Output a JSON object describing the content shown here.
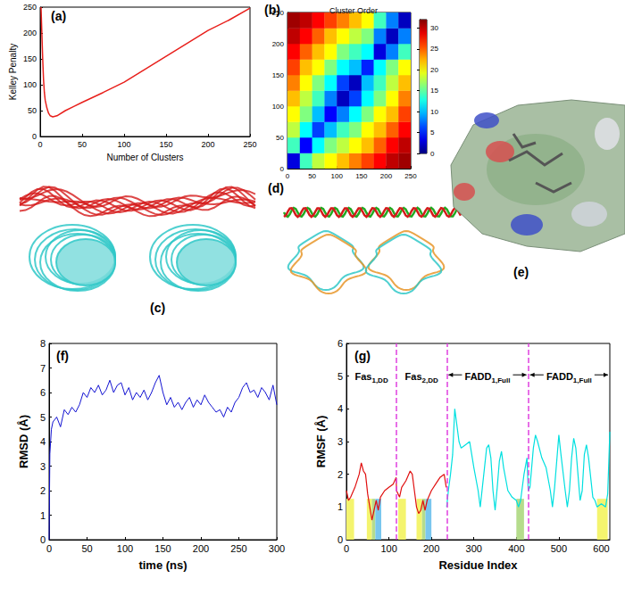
{
  "chart_data": [
    {
      "label": "(a)",
      "type": "line",
      "x_label": "Number of Clusters",
      "y_label": "Kelley Penalty",
      "x": [
        1,
        2,
        3,
        4,
        5,
        6,
        8,
        10,
        12,
        15,
        20,
        30,
        40,
        50,
        75,
        100,
        125,
        150,
        175,
        200,
        225,
        250
      ],
      "values": [
        250,
        200,
        150,
        110,
        85,
        70,
        55,
        45,
        40,
        38,
        40,
        50,
        58,
        66,
        85,
        105,
        130,
        155,
        180,
        205,
        225,
        248
      ],
      "color": "#e8201c",
      "xlim": [
        0,
        250
      ],
      "xticks": [
        0,
        50,
        100,
        150,
        200,
        250
      ],
      "ylim": [
        0,
        250
      ],
      "yticks": [
        0,
        50,
        100,
        150,
        200,
        250
      ]
    },
    {
      "label": "(b)",
      "type": "heatmap",
      "title": "Cluster Order",
      "x_bins": [
        0,
        25,
        50,
        75,
        100,
        125,
        150,
        175,
        200,
        225,
        250
      ],
      "y_bins": [
        0,
        25,
        50,
        75,
        100,
        125,
        150,
        175,
        200,
        225,
        250
      ],
      "cells": [
        [
          3,
          14,
          18,
          20,
          22,
          24,
          26,
          28,
          30,
          31
        ],
        [
          14,
          4,
          12,
          16,
          18,
          20,
          22,
          25,
          28,
          30
        ],
        [
          18,
          12,
          6,
          10,
          14,
          16,
          20,
          22,
          25,
          28
        ],
        [
          20,
          16,
          10,
          4,
          8,
          12,
          16,
          20,
          22,
          26
        ],
        [
          22,
          18,
          14,
          8,
          2,
          6,
          12,
          16,
          20,
          24
        ],
        [
          24,
          20,
          16,
          12,
          6,
          2,
          10,
          14,
          18,
          22
        ],
        [
          26,
          22,
          20,
          16,
          12,
          10,
          5,
          12,
          16,
          20
        ],
        [
          28,
          25,
          22,
          20,
          16,
          14,
          12,
          3,
          8,
          14
        ],
        [
          30,
          28,
          25,
          22,
          20,
          18,
          16,
          8,
          2,
          8
        ],
        [
          31,
          30,
          28,
          26,
          24,
          22,
          20,
          14,
          8,
          2
        ]
      ],
      "xlim": [
        0,
        250
      ],
      "xticks": [
        0,
        50,
        100,
        150,
        200,
        250
      ],
      "ylim": [
        0,
        250
      ],
      "yticks": [
        0,
        50,
        100,
        150,
        200,
        250
      ],
      "colorbar": {
        "range": [
          0,
          32
        ],
        "ticks": [
          0,
          5,
          10,
          15,
          20,
          25,
          30
        ]
      }
    },
    {
      "label": "(f)",
      "type": "line",
      "x_label": "time (ns)",
      "y_label": "RMSD (Å)",
      "x": [
        0,
        1,
        3,
        5,
        10,
        15,
        20,
        25,
        30,
        35,
        40,
        45,
        50,
        55,
        60,
        65,
        70,
        75,
        80,
        85,
        90,
        95,
        100,
        105,
        110,
        115,
        120,
        125,
        130,
        135,
        140,
        145,
        150,
        155,
        160,
        165,
        170,
        175,
        180,
        185,
        190,
        195,
        200,
        205,
        210,
        215,
        220,
        225,
        230,
        235,
        240,
        245,
        250,
        255,
        260,
        265,
        270,
        275,
        280,
        285,
        290,
        295,
        300
      ],
      "values": [
        0,
        3.5,
        4.5,
        4.8,
        5.0,
        4.6,
        5.3,
        5.1,
        5.4,
        5.2,
        5.5,
        6.0,
        5.8,
        6.2,
        6.0,
        6.3,
        5.9,
        6.1,
        6.5,
        6.0,
        6.3,
        6.4,
        5.9,
        6.2,
        5.7,
        6.0,
        5.8,
        6.1,
        5.7,
        6.0,
        6.4,
        6.7,
        6.0,
        5.5,
        5.8,
        5.4,
        5.6,
        5.3,
        5.6,
        5.8,
        5.4,
        5.7,
        5.5,
        5.9,
        5.6,
        5.4,
        5.2,
        5.3,
        5.0,
        5.4,
        5.2,
        5.6,
        5.8,
        6.2,
        6.4,
        6.0,
        6.1,
        5.8,
        6.2,
        6.0,
        5.7,
        6.3,
        5.5
      ],
      "color": "#1414d2",
      "xlim": [
        0,
        300
      ],
      "xticks": [
        0,
        50,
        100,
        150,
        200,
        250,
        300
      ],
      "ylim": [
        0,
        8
      ],
      "yticks": [
        0,
        1,
        2,
        3,
        4,
        5,
        6,
        7,
        8
      ]
    },
    {
      "label": "(g)",
      "type": "line",
      "x_label": "Residue Index",
      "y_label": "RMSF (Å)",
      "series": [
        {
          "color": "#e01010",
          "x": [
            0,
            5,
            10,
            20,
            30,
            35,
            40,
            45,
            50,
            55,
            60,
            65,
            70,
            75,
            80,
            90,
            100,
            110,
            117,
            118,
            125,
            130,
            140,
            150,
            155,
            160,
            165,
            170,
            175,
            180,
            185,
            190,
            200,
            210,
            220,
            230,
            235
          ],
          "values": [
            1.5,
            1.2,
            1.3,
            1.6,
            2.0,
            2.35,
            2.1,
            2.0,
            1.4,
            1.0,
            0.6,
            0.9,
            1.2,
            0.9,
            1.3,
            1.5,
            1.6,
            1.7,
            1.9,
            1.5,
            1.3,
            1.6,
            1.8,
            2.1,
            2.0,
            1.5,
            1.0,
            0.8,
            0.9,
            1.2,
            0.9,
            1.2,
            1.5,
            1.7,
            1.9,
            2.0,
            1.6
          ]
        },
        {
          "color": "#00e0e0",
          "x": [
            236,
            240,
            245,
            250,
            255,
            260,
            265,
            270,
            280,
            290,
            295,
            300,
            310,
            315,
            320,
            325,
            330,
            335,
            340,
            345,
            350,
            355,
            360,
            365,
            370,
            380,
            390,
            400,
            405,
            410,
            418,
            425,
            428,
            432,
            440,
            445,
            450,
            460,
            470,
            480,
            485,
            490,
            500,
            505,
            515,
            520,
            525,
            530,
            535,
            540,
            545,
            550,
            555,
            560,
            565,
            570,
            580,
            585,
            590,
            600,
            610,
            615,
            620
          ],
          "values": [
            1.0,
            1.5,
            2.0,
            2.6,
            4.0,
            3.5,
            3.0,
            2.8,
            2.9,
            3.0,
            2.6,
            2.2,
            1.5,
            1.0,
            1.6,
            2.2,
            2.8,
            2.9,
            2.5,
            1.5,
            0.9,
            1.6,
            2.4,
            2.7,
            2.2,
            1.5,
            1.3,
            1.2,
            1.0,
            1.2,
            2.0,
            2.5,
            1.5,
            1.6,
            2.8,
            3.2,
            3.0,
            2.5,
            2.2,
            1.5,
            1.0,
            1.6,
            3.2,
            2.6,
            1.5,
            1.0,
            1.5,
            2.5,
            3.1,
            2.8,
            2.0,
            1.2,
            1.5,
            2.6,
            2.9,
            2.5,
            1.3,
            1.2,
            1.0,
            1.1,
            1.0,
            1.4,
            3.3
          ]
        }
      ],
      "xlim": [
        0,
        620
      ],
      "xticks": [
        0,
        100,
        200,
        300,
        400,
        500,
        600
      ],
      "ylim": [
        0,
        6
      ],
      "yticks": [
        0,
        1,
        2,
        3,
        4,
        5,
        6
      ],
      "boundaries": [
        118,
        236,
        428
      ],
      "segments": [
        {
          "text": "Fas",
          "sub": "1,DD"
        },
        {
          "text": "Fas",
          "sub": "2,DD"
        },
        {
          "text": "FADD",
          "sub": "1,Full"
        },
        {
          "text": "FADD",
          "sub": "1,Full"
        }
      ],
      "regions": [
        {
          "x": [
            0,
            18
          ],
          "top": 1.25,
          "color": "#f4f46e"
        },
        {
          "x": [
            48,
            60
          ],
          "top": 1.25,
          "color": "#f4f46e"
        },
        {
          "x": [
            60,
            68
          ],
          "top": 1.25,
          "color": "#b5dc8c"
        },
        {
          "x": [
            68,
            82
          ],
          "top": 1.25,
          "color": "#79c6ee"
        },
        {
          "x": [
            122,
            140
          ],
          "top": 1.25,
          "color": "#f4f46e"
        },
        {
          "x": [
            165,
            178
          ],
          "top": 1.25,
          "color": "#f4f46e"
        },
        {
          "x": [
            178,
            186
          ],
          "top": 1.25,
          "color": "#b5dc8c"
        },
        {
          "x": [
            186,
            200
          ],
          "top": 1.25,
          "color": "#79c6ee"
        },
        {
          "x": [
            400,
            418
          ],
          "top": 1.25,
          "color": "#b5dc8c"
        },
        {
          "x": [
            590,
            615
          ],
          "top": 1.25,
          "color": "#f4f46e"
        }
      ]
    }
  ],
  "images": [
    {
      "label": "(c)"
    },
    {
      "label": "(d)"
    },
    {
      "label": "(e)"
    }
  ]
}
